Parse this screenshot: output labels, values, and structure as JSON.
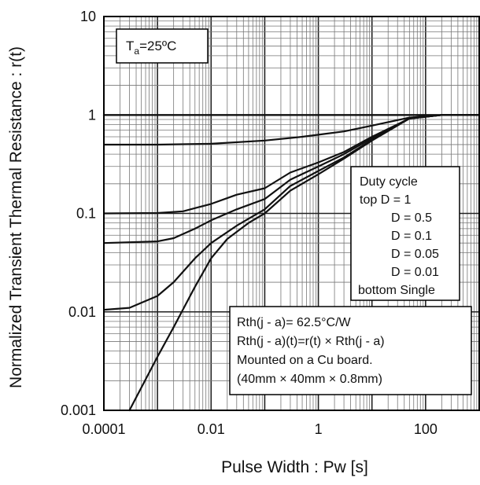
{
  "chart_data": {
    "type": "line",
    "title": "",
    "xlabel": "Pulse Width : Pw [s]",
    "ylabel": "Normalized Transient Thermal Resistance : r(t)",
    "x_scale": "log",
    "y_scale": "log",
    "xlim": [
      0.0001,
      1000
    ],
    "ylim": [
      0.001,
      10
    ],
    "x_tick_labels": [
      "0.0001",
      "0.01",
      "1",
      "100"
    ],
    "y_tick_labels": [
      "10",
      "1",
      "0.1",
      "0.01",
      "0.001"
    ],
    "grid": true,
    "condition_label": {
      "prefix": "T",
      "subscript": "a",
      "suffix": "=25ºC"
    },
    "legend": {
      "placement": "right-middle",
      "lines": [
        "Duty cycle",
        "top  D = 1",
        "D = 0.5",
        "D = 0.1",
        "D = 0.05",
        "D = 0.01",
        "bottom Single"
      ]
    },
    "note": {
      "placement": "bottom-right",
      "lines": [
        "Rth(j - a)= 62.5°C/W",
        "Rth(j - a)(t)=r(t) × Rth(j - a)",
        "Mounted on a Cu board.",
        "(40mm × 40mm × 0.8mm)"
      ]
    },
    "series": [
      {
        "x": [
          0.0001,
          1000
        ],
        "y": [
          1,
          1
        ]
      },
      {
        "x": [
          0.0001,
          0.001,
          0.01,
          0.1,
          0.5,
          1,
          3,
          10,
          50,
          200,
          1000
        ],
        "y": [
          0.5,
          0.5,
          0.51,
          0.55,
          0.6,
          0.63,
          0.68,
          0.78,
          0.94,
          1,
          1
        ]
      },
      {
        "x": [
          0.0001,
          0.001,
          0.003,
          0.01,
          0.03,
          0.1,
          0.3,
          1,
          3,
          10,
          50,
          200,
          1000
        ],
        "y": [
          0.1,
          0.101,
          0.105,
          0.125,
          0.155,
          0.18,
          0.26,
          0.33,
          0.42,
          0.6,
          0.92,
          1,
          1
        ]
      },
      {
        "x": [
          0.0001,
          0.001,
          0.002,
          0.005,
          0.01,
          0.03,
          0.1,
          0.3,
          1,
          3,
          10,
          50,
          200,
          1000
        ],
        "y": [
          0.05,
          0.052,
          0.056,
          0.07,
          0.085,
          0.11,
          0.14,
          0.22,
          0.3,
          0.4,
          0.58,
          0.92,
          1,
          1
        ]
      },
      {
        "x": [
          0.0001,
          0.0003,
          0.001,
          0.002,
          0.005,
          0.01,
          0.03,
          0.1,
          0.3,
          1,
          3,
          10,
          50,
          200,
          1000
        ],
        "y": [
          0.0105,
          0.011,
          0.0145,
          0.02,
          0.035,
          0.05,
          0.075,
          0.11,
          0.19,
          0.27,
          0.37,
          0.56,
          0.92,
          1,
          1
        ]
      },
      {
        "x": [
          0.0003,
          0.001,
          0.002,
          0.005,
          0.01,
          0.02,
          0.05,
          0.1,
          0.3,
          1,
          3,
          10,
          50,
          200,
          1000
        ],
        "y": [
          0.001,
          0.0035,
          0.007,
          0.018,
          0.035,
          0.055,
          0.08,
          0.1,
          0.17,
          0.25,
          0.36,
          0.55,
          0.92,
          1,
          1
        ]
      }
    ]
  }
}
